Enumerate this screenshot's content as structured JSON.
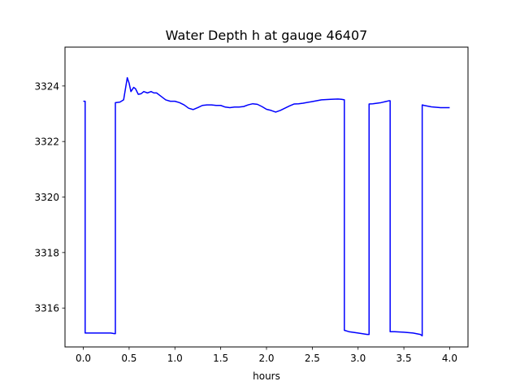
{
  "chart_data": {
    "type": "line",
    "title": "Water Depth h at gauge 46407",
    "xlabel": "hours",
    "ylabel": "",
    "xlim": [
      -0.2,
      4.2
    ],
    "ylim": [
      3314.6,
      3325.4
    ],
    "xticks": [
      0.0,
      0.5,
      1.0,
      1.5,
      2.0,
      2.5,
      3.0,
      3.5,
      4.0
    ],
    "xtick_labels": [
      "0.0",
      "0.5",
      "1.0",
      "1.5",
      "2.0",
      "2.5",
      "3.0",
      "3.5",
      "4.0"
    ],
    "yticks": [
      3316,
      3318,
      3320,
      3322,
      3324
    ],
    "ytick_labels": [
      "3316",
      "3318",
      "3320",
      "3322",
      "3324"
    ],
    "grid": false,
    "line_color": "#0000ff",
    "series": [
      {
        "name": "",
        "color": "#0000ff",
        "x": [
          0.0,
          0.02,
          0.02,
          0.1,
          0.2,
          0.3,
          0.34,
          0.35,
          0.35,
          0.4,
          0.44,
          0.46,
          0.48,
          0.5,
          0.52,
          0.55,
          0.57,
          0.6,
          0.63,
          0.66,
          0.7,
          0.74,
          0.77,
          0.8,
          0.84,
          0.9,
          0.95,
          1.0,
          1.05,
          1.1,
          1.15,
          1.2,
          1.25,
          1.3,
          1.35,
          1.4,
          1.45,
          1.5,
          1.55,
          1.6,
          1.65,
          1.7,
          1.75,
          1.8,
          1.85,
          1.9,
          1.95,
          2.0,
          2.05,
          2.1,
          2.15,
          2.2,
          2.25,
          2.3,
          2.35,
          2.4,
          2.5,
          2.6,
          2.7,
          2.78,
          2.82,
          2.85,
          2.85,
          2.9,
          3.0,
          3.1,
          3.12,
          3.12,
          3.16,
          3.25,
          3.3,
          3.34,
          3.35,
          3.35,
          3.4,
          3.5,
          3.6,
          3.68,
          3.7,
          3.7,
          3.72,
          3.8,
          3.9,
          4.0
        ],
        "y": [
          3323.45,
          3323.45,
          3315.1,
          3315.1,
          3315.1,
          3315.1,
          3315.08,
          3315.08,
          3323.4,
          3323.42,
          3323.5,
          3323.9,
          3324.3,
          3324.1,
          3323.8,
          3323.95,
          3323.9,
          3323.7,
          3323.72,
          3323.8,
          3323.75,
          3323.8,
          3323.75,
          3323.75,
          3323.65,
          3323.5,
          3323.45,
          3323.45,
          3323.4,
          3323.32,
          3323.2,
          3323.15,
          3323.22,
          3323.3,
          3323.32,
          3323.32,
          3323.3,
          3323.3,
          3323.24,
          3323.22,
          3323.24,
          3323.24,
          3323.26,
          3323.32,
          3323.36,
          3323.34,
          3323.26,
          3323.16,
          3323.12,
          3323.06,
          3323.12,
          3323.2,
          3323.28,
          3323.35,
          3323.36,
          3323.38,
          3323.44,
          3323.5,
          3323.52,
          3323.53,
          3323.52,
          3323.5,
          3315.2,
          3315.15,
          3315.1,
          3315.05,
          3315.05,
          3323.35,
          3323.36,
          3323.4,
          3323.44,
          3323.47,
          3323.47,
          3315.15,
          3315.15,
          3315.13,
          3315.1,
          3315.05,
          3315.0,
          3323.32,
          3323.3,
          3323.25,
          3323.22,
          3323.22
        ]
      }
    ]
  }
}
